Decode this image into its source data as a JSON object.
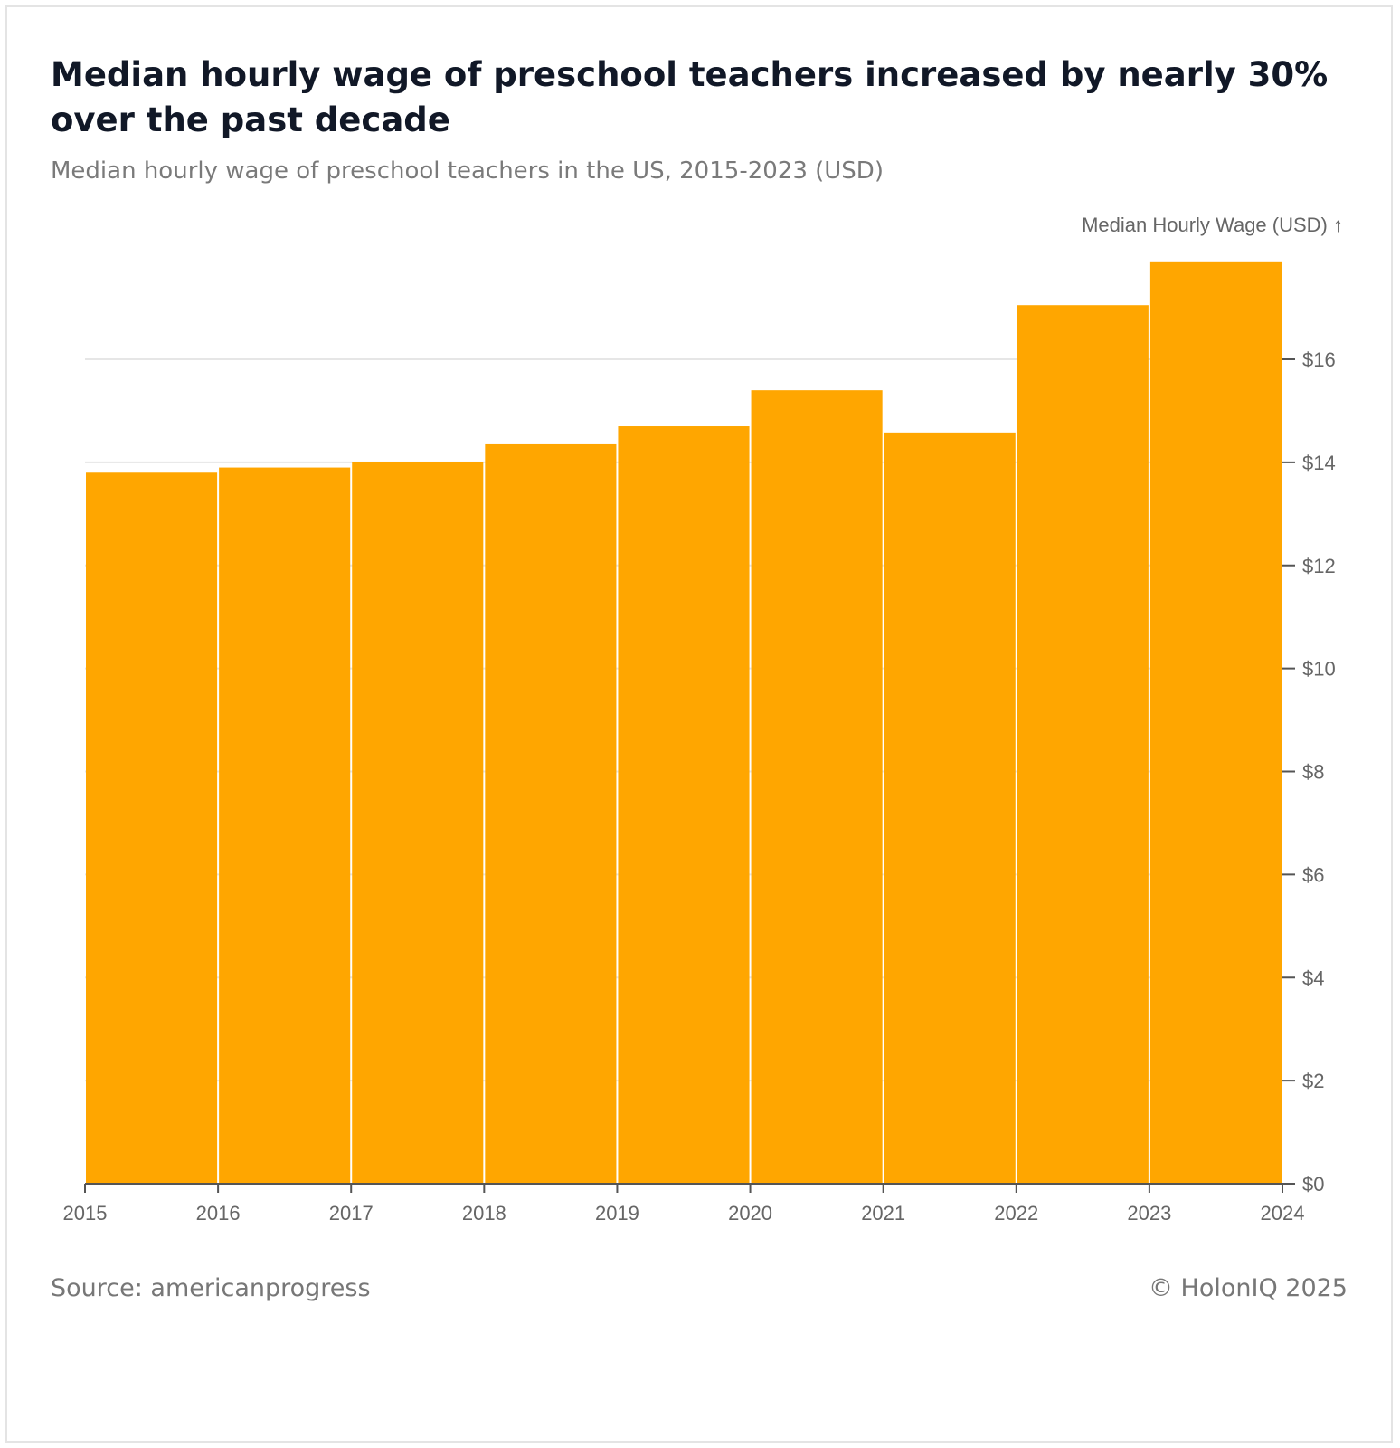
{
  "header": {
    "title": "Median hourly wage of preschool teachers increased by nearly 30% over the past decade",
    "subtitle": "Median hourly wage of preschool teachers in the US, 2015-2023 (USD)"
  },
  "footer": {
    "source": "Source: americanprogress",
    "copyright": "© HolonIQ 2025"
  },
  "chart_data": {
    "type": "bar",
    "title": "Median hourly wage of preschool teachers increased by nearly 30% over the past decade",
    "subtitle": "Median hourly wage of preschool teachers in the US, 2015-2023 (USD)",
    "xlabel": "",
    "ylabel": "Median Hourly Wage (USD) ↑",
    "categories": [
      "2015",
      "2016",
      "2017",
      "2018",
      "2019",
      "2020",
      "2021",
      "2022",
      "2023"
    ],
    "values": [
      13.8,
      13.9,
      14.0,
      14.35,
      14.7,
      15.4,
      14.58,
      17.05,
      17.9
    ],
    "x_ticks": [
      "2015",
      "2016",
      "2017",
      "2018",
      "2019",
      "2020",
      "2021",
      "2022",
      "2023",
      "2024"
    ],
    "y_ticks": [
      0,
      2,
      4,
      6,
      8,
      10,
      12,
      14,
      16
    ],
    "y_tick_labels": [
      "$0",
      "$2",
      "$4",
      "$6",
      "$8",
      "$10",
      "$12",
      "$14",
      "$16"
    ],
    "ylim": [
      0,
      18
    ],
    "y_axis_side": "right",
    "grid": true,
    "legend": "none",
    "colors": {
      "bar": "#FFA600",
      "grid": "#e6e6e6",
      "axis": "#555555",
      "text": "#666666"
    }
  }
}
